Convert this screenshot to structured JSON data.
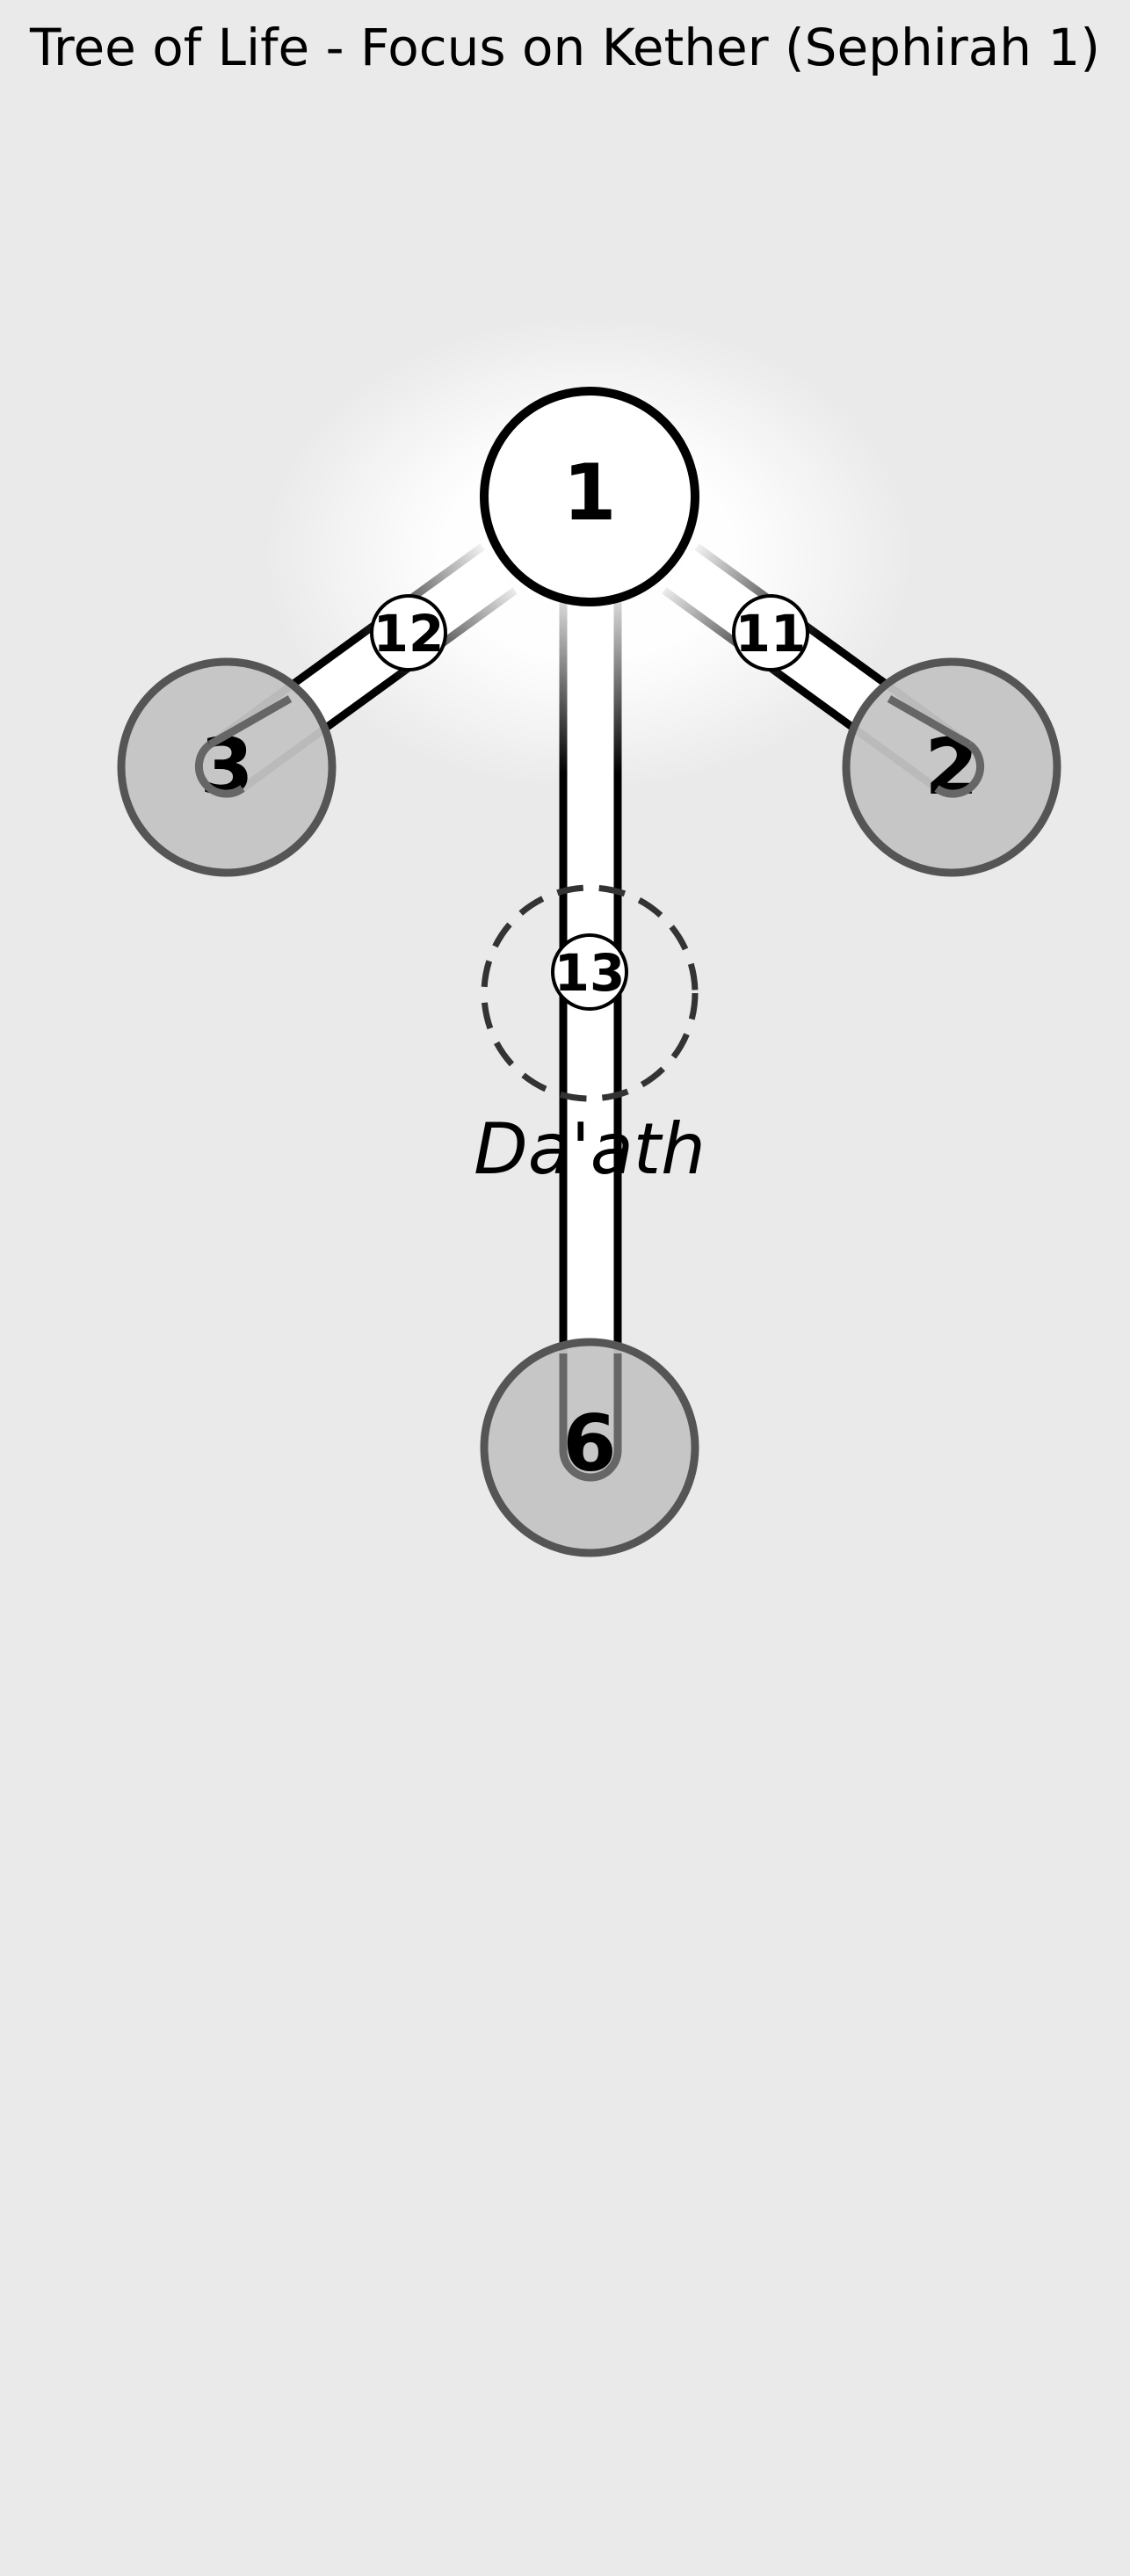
{
  "title": "Tree of Life - Focus on Kether (Sephirah 1)",
  "colors": {
    "background": "#eaeaea",
    "focus_fill": "#ffffff",
    "focus_stroke": "#000000",
    "dim_fill": "#c4c4c4",
    "dim_stroke": "#555555",
    "path_fill": "#ffffff",
    "path_stroke": "#000000",
    "daath_stroke": "#333333"
  },
  "sephiroth": [
    {
      "id": "kether",
      "label": "1",
      "state": "focus"
    },
    {
      "id": "chokmah",
      "label": "2",
      "state": "dim"
    },
    {
      "id": "binah",
      "label": "3",
      "state": "dim"
    },
    {
      "id": "tiphareth",
      "label": "6",
      "state": "dim"
    }
  ],
  "paths": [
    {
      "id": "path-11",
      "label": "11",
      "from": "1",
      "to": "2"
    },
    {
      "id": "path-12",
      "label": "12",
      "from": "1",
      "to": "3"
    },
    {
      "id": "path-13",
      "label": "13",
      "from": "1",
      "to": "6"
    }
  ],
  "daath": {
    "label": "Da'ath",
    "style": "dashed"
  }
}
